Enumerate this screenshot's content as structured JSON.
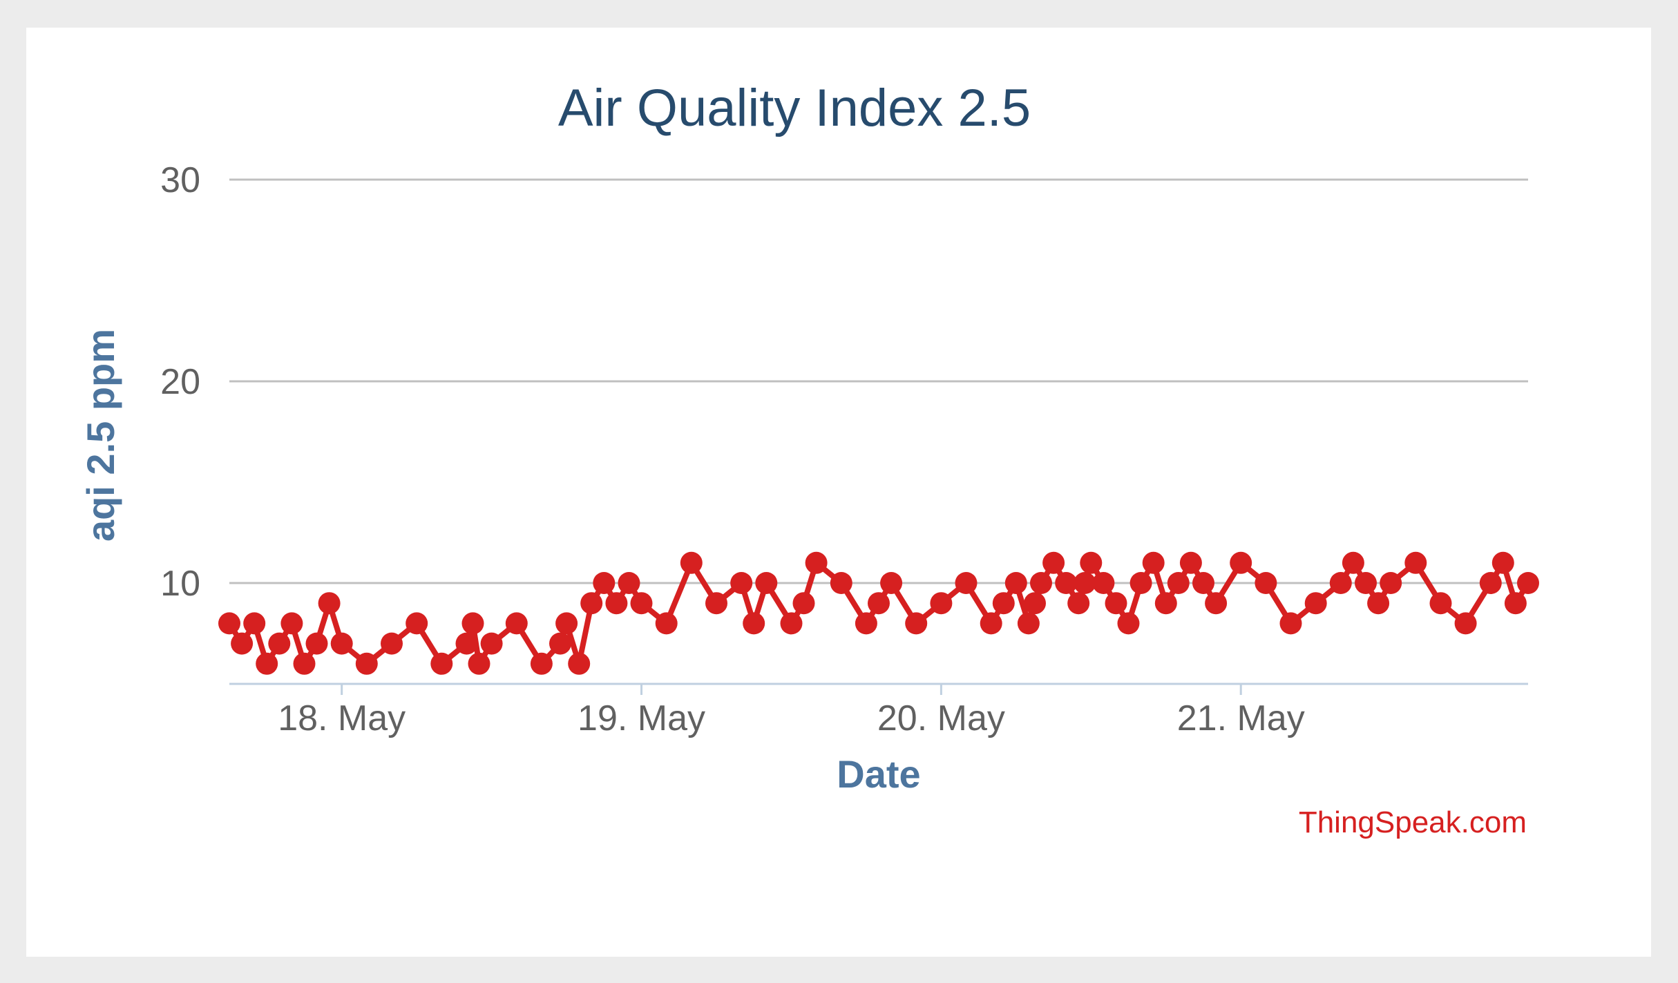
{
  "chart_data": {
    "type": "line",
    "title": "Air Quality Index 2.5",
    "xlabel": "Date",
    "ylabel": "aqi 2.5 ppm",
    "credit": "ThingSpeak.com",
    "x_tick_labels": [
      "18. May",
      "19. May",
      "20. May",
      "21. May"
    ],
    "y_tick_labels": [
      "10",
      "20",
      "30"
    ],
    "ylim": [
      5,
      30
    ],
    "xlim": [
      "2017-05-17T15:00",
      "2017-05-21T23:00"
    ],
    "grid": true,
    "legend": "none",
    "marker": "circle",
    "color": "#d62020",
    "series": [
      {
        "x": [
          "2017-05-17T15:00",
          "2017-05-17T16:00",
          "2017-05-17T17:00",
          "2017-05-17T18:00",
          "2017-05-17T19:00",
          "2017-05-17T20:00",
          "2017-05-17T21:00",
          "2017-05-17T22:00",
          "2017-05-17T23:00",
          "2017-05-18T00:00",
          "2017-05-18T02:00",
          "2017-05-18T04:00",
          "2017-05-18T06:00",
          "2017-05-18T08:00",
          "2017-05-18T10:00",
          "2017-05-18T10:30",
          "2017-05-18T11:00",
          "2017-05-18T12:00",
          "2017-05-18T14:00",
          "2017-05-18T16:00",
          "2017-05-18T17:30",
          "2017-05-18T18:00",
          "2017-05-18T19:00",
          "2017-05-18T20:00",
          "2017-05-18T21:00",
          "2017-05-18T22:00",
          "2017-05-18T23:00",
          "2017-05-19T00:00",
          "2017-05-19T02:00",
          "2017-05-19T04:00",
          "2017-05-19T06:00",
          "2017-05-19T08:00",
          "2017-05-19T09:00",
          "2017-05-19T10:00",
          "2017-05-19T12:00",
          "2017-05-19T13:00",
          "2017-05-19T14:00",
          "2017-05-19T16:00",
          "2017-05-19T18:00",
          "2017-05-19T19:00",
          "2017-05-19T20:00",
          "2017-05-19T22:00",
          "2017-05-20T00:00",
          "2017-05-20T02:00",
          "2017-05-20T04:00",
          "2017-05-20T05:00",
          "2017-05-20T06:00",
          "2017-05-20T07:00",
          "2017-05-20T07:30",
          "2017-05-20T08:00",
          "2017-05-20T09:00",
          "2017-05-20T10:00",
          "2017-05-20T11:00",
          "2017-05-20T11:30",
          "2017-05-20T12:00",
          "2017-05-20T13:00",
          "2017-05-20T14:00",
          "2017-05-20T15:00",
          "2017-05-20T16:00",
          "2017-05-20T17:00",
          "2017-05-20T18:00",
          "2017-05-20T19:00",
          "2017-05-20T20:00",
          "2017-05-20T21:00",
          "2017-05-20T22:00",
          "2017-05-21T00:00",
          "2017-05-21T02:00",
          "2017-05-21T04:00",
          "2017-05-21T06:00",
          "2017-05-21T08:00",
          "2017-05-21T09:00",
          "2017-05-21T10:00",
          "2017-05-21T11:00",
          "2017-05-21T12:00",
          "2017-05-21T14:00",
          "2017-05-21T16:00",
          "2017-05-21T18:00",
          "2017-05-21T20:00",
          "2017-05-21T21:00",
          "2017-05-21T22:00",
          "2017-05-21T23:00"
        ],
        "y": [
          8,
          7,
          8,
          6,
          7,
          8,
          6,
          7,
          9,
          7,
          6,
          7,
          8,
          6,
          7,
          8,
          6,
          7,
          8,
          6,
          7,
          8,
          6,
          9,
          10,
          9,
          10,
          9,
          8,
          11,
          9,
          10,
          8,
          10,
          8,
          9,
          11,
          10,
          8,
          9,
          10,
          8,
          9,
          10,
          8,
          9,
          10,
          8,
          9,
          10,
          11,
          10,
          9,
          10,
          11,
          10,
          9,
          8,
          10,
          11,
          9,
          10,
          11,
          10,
          9,
          11,
          10,
          8,
          9,
          10,
          11,
          10,
          9,
          10,
          11,
          9,
          8,
          10,
          11,
          9,
          10
        ]
      }
    ]
  }
}
